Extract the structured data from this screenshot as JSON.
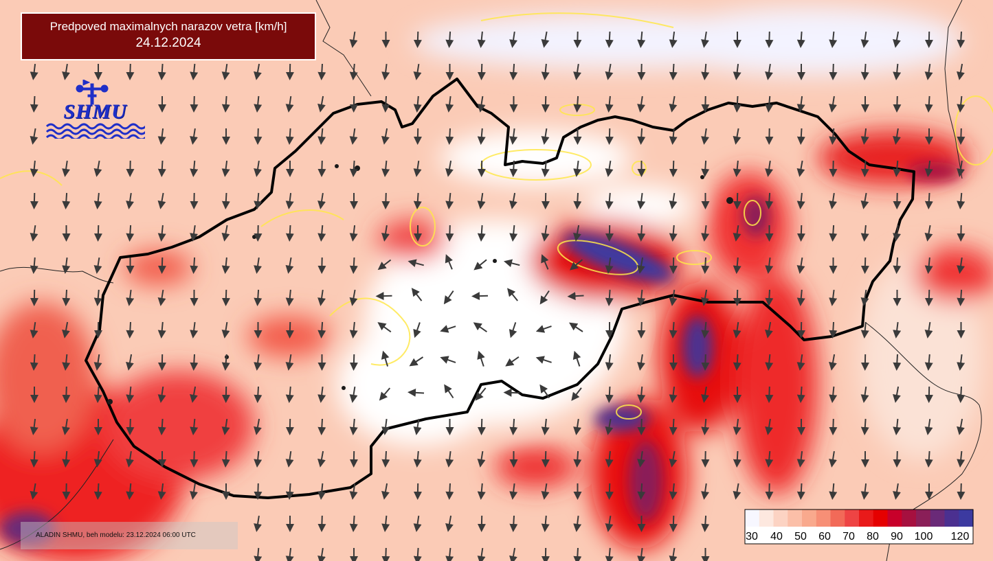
{
  "title": {
    "line1": "Predpoved maximalnych narazov vetra [km/h]",
    "line2": "24.12.2024"
  },
  "logo": {
    "text": "SHMU",
    "icon": "anemometer-icon"
  },
  "model_run": "ALADIN SHMU, beh modelu: 23.12.2024 06:00 UTC",
  "legend": {
    "colors": [
      "#f7f7ff",
      "#fde8df",
      "#fcd3c3",
      "#fbbfa8",
      "#f9a98d",
      "#f78f76",
      "#f26a58",
      "#ee4444",
      "#e91a1a",
      "#e50000",
      "#c8002a",
      "#a6103f",
      "#8a1f58",
      "#6a2a78",
      "#4b3090",
      "#3c3aa0"
    ],
    "labels": [
      "30",
      "40",
      "50",
      "60",
      "70",
      "80",
      "90",
      "100",
      "120"
    ]
  },
  "colors": {
    "title_bg": "#7a0a0a",
    "border_line": "#000000",
    "isoline": "#ffe84a",
    "arrow": "#3a3a3a"
  }
}
